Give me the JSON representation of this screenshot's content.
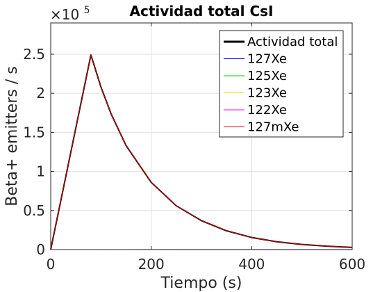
{
  "chart_data": {
    "type": "line",
    "title": "Actividad total  CsI",
    "xlabel": "Tiempo (s)",
    "ylabel": "Beta+ emitters / s",
    "y_multiplier_base": "×10",
    "y_multiplier_exp": "5",
    "xlim": [
      0,
      600
    ],
    "ylim": [
      0,
      2.9
    ],
    "x_ticks": [
      0,
      200,
      400,
      600
    ],
    "x_tick_labels": [
      "0",
      "200",
      "400",
      "600"
    ],
    "y_ticks": [
      0,
      0.5,
      1,
      1.5,
      2,
      2.5
    ],
    "y_tick_labels": [
      "0",
      "0.5",
      "1",
      "1.5",
      "2",
      "2.5"
    ],
    "grid": true,
    "legend_position": "top-right",
    "series": [
      {
        "name": "Actividad total",
        "color": "#000000",
        "x": [
          0,
          80,
          100,
          120,
          150,
          200,
          250,
          300,
          350,
          400,
          450,
          500,
          550,
          600
        ],
        "y": [
          0,
          2.49,
          2.08,
          1.74,
          1.33,
          0.86,
          0.56,
          0.37,
          0.24,
          0.155,
          0.1,
          0.066,
          0.043,
          0.028
        ]
      },
      {
        "name": "127Xe",
        "color": "#0000ff",
        "x": [
          0,
          80,
          600
        ],
        "y": [
          0,
          0.0005,
          0.0006
        ]
      },
      {
        "name": "125Xe",
        "color": "#00cc00",
        "x": [
          0,
          80,
          600
        ],
        "y": [
          0,
          0.0004,
          0.0003
        ]
      },
      {
        "name": "123Xe",
        "color": "#e6e600",
        "x": [
          0,
          80,
          600
        ],
        "y": [
          0,
          0.0004,
          0.0002
        ]
      },
      {
        "name": "122Xe",
        "color": "#ff00ff",
        "x": [
          0,
          80,
          600
        ],
        "y": [
          0,
          0.0003,
          0.0002
        ]
      },
      {
        "name": "127mXe",
        "color": "#cc0000",
        "x": [
          0,
          80,
          100,
          120,
          150,
          200,
          250,
          300,
          350,
          400,
          450,
          500,
          550,
          600
        ],
        "y": [
          0,
          2.49,
          2.08,
          1.74,
          1.33,
          0.86,
          0.56,
          0.37,
          0.24,
          0.155,
          0.1,
          0.066,
          0.043,
          0.028
        ]
      }
    ]
  }
}
